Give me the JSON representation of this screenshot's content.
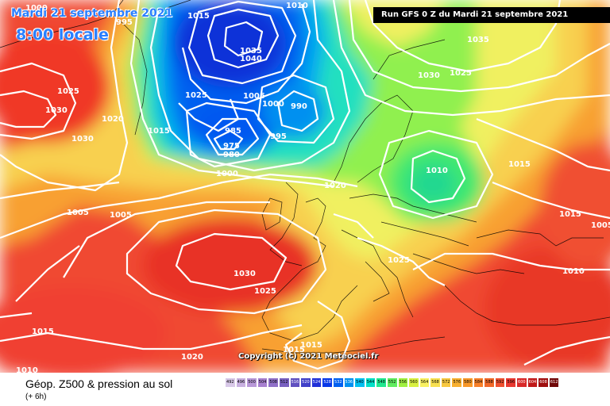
{
  "header": {
    "date_title": "Mardi 21 septembre 2021",
    "time_label": "8:00 locale",
    "run_info": "Run GFS 0 Z du Mardi 21 septembre 2021"
  },
  "map": {
    "copyright": "Copyright (c) 2021 Meteociel.fr",
    "isobar_labels": [
      "1000",
      "1015",
      "1010",
      "1005",
      "995",
      "990",
      "985",
      "980",
      "975",
      "1040",
      "1035",
      "1030",
      "1025",
      "1020",
      "1010"
    ],
    "colors": {
      "isobar": "#ffffff",
      "coastline": "#000000",
      "low_core": "#0a1fd0",
      "high_core": "#f0402c"
    }
  },
  "legend": {
    "title": "Géop. Z500 & pression au sol",
    "subtitle": "(+ 6h)",
    "scale": [
      {
        "v": "492",
        "c": "#d8c8e8"
      },
      {
        "v": "496",
        "c": "#c8b0e0"
      },
      {
        "v": "500",
        "c": "#b898d8"
      },
      {
        "v": "504",
        "c": "#a880d0"
      },
      {
        "v": "508",
        "c": "#9070c8"
      },
      {
        "v": "512",
        "c": "#7860c0"
      },
      {
        "v": "516",
        "c": "#6050c0"
      },
      {
        "v": "520",
        "c": "#4040c8"
      },
      {
        "v": "524",
        "c": "#2030d8"
      },
      {
        "v": "528",
        "c": "#0838e8"
      },
      {
        "v": "532",
        "c": "#0060f0"
      },
      {
        "v": "536",
        "c": "#0090f0"
      },
      {
        "v": "540",
        "c": "#00c0f0"
      },
      {
        "v": "544",
        "c": "#00e0c8"
      },
      {
        "v": "548",
        "c": "#20e890"
      },
      {
        "v": "552",
        "c": "#60ec60"
      },
      {
        "v": "556",
        "c": "#a0f040"
      },
      {
        "v": "560",
        "c": "#d8f040"
      },
      {
        "v": "564",
        "c": "#f8f060"
      },
      {
        "v": "568",
        "c": "#f8e050"
      },
      {
        "v": "572",
        "c": "#f8c840"
      },
      {
        "v": "576",
        "c": "#f8b030"
      },
      {
        "v": "580",
        "c": "#f89828"
      },
      {
        "v": "584",
        "c": "#f88028"
      },
      {
        "v": "588",
        "c": "#f06828"
      },
      {
        "v": "592",
        "c": "#ee5030"
      },
      {
        "v": "596",
        "c": "#e83830"
      },
      {
        "v": "600",
        "c": "#d82828"
      },
      {
        "v": "604",
        "c": "#c01818"
      },
      {
        "v": "608",
        "c": "#a01010"
      },
      {
        "v": "612",
        "c": "#700808"
      }
    ]
  }
}
